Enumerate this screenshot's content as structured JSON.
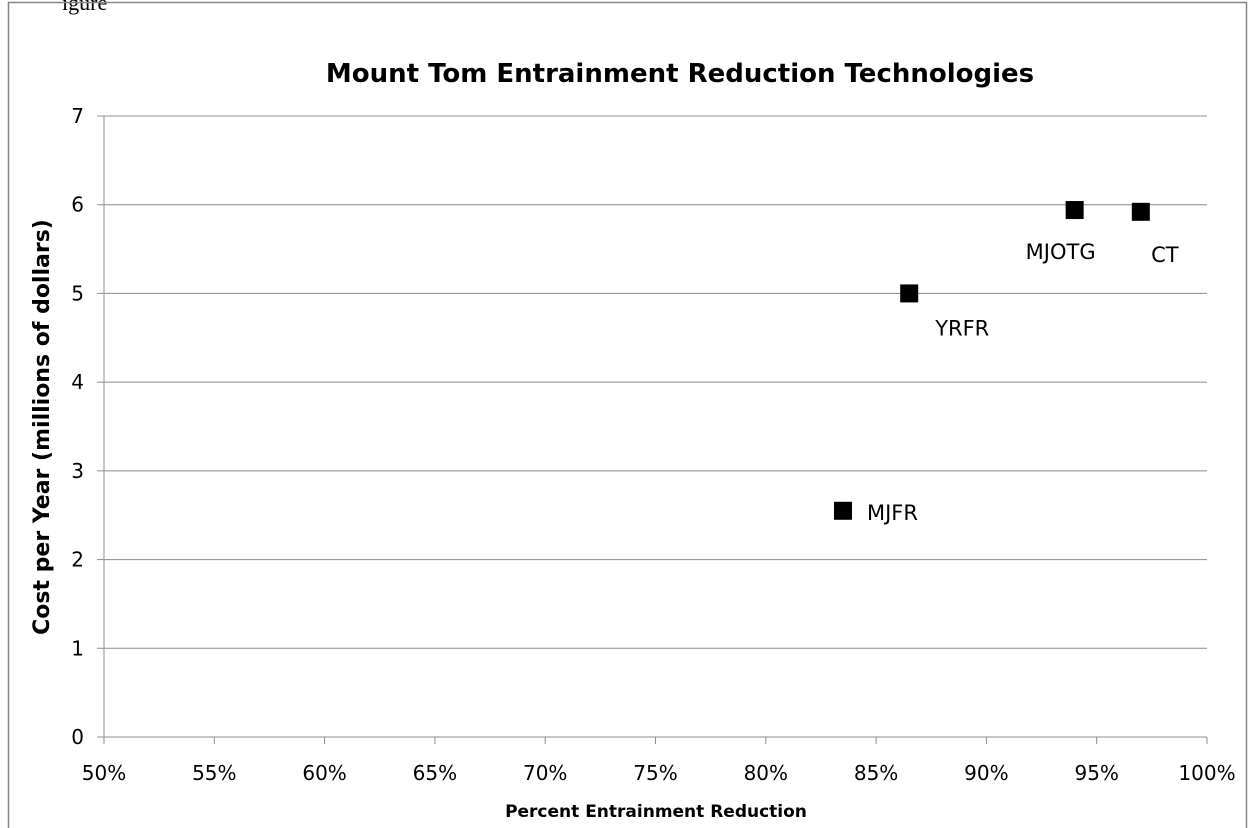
{
  "caption_fragment": "igure",
  "chart_data": {
    "type": "scatter",
    "title": "Mount Tom Entrainment Reduction Technologies",
    "xlabel": "Percent Entrainment Reduction",
    "ylabel": "Cost per Year (millions of dollars)",
    "xlim": [
      0.5,
      1.0
    ],
    "ylim": [
      0,
      7
    ],
    "x_ticks": [
      "50%",
      "55%",
      "60%",
      "65%",
      "70%",
      "75%",
      "80%",
      "85%",
      "90%",
      "95%",
      "100%"
    ],
    "y_ticks": [
      "0",
      "1",
      "2",
      "3",
      "4",
      "5",
      "6",
      "7"
    ],
    "grid": "horizontal",
    "legend": "none",
    "marker": "square",
    "marker_color": "#000000",
    "series": [
      {
        "points": [
          {
            "label": "MJFR",
            "x": 0.835,
            "y": 2.55
          },
          {
            "label": "YRFR",
            "x": 0.865,
            "y": 5.0
          },
          {
            "label": "MJOTG",
            "x": 0.94,
            "y": 5.94
          },
          {
            "label": "CT",
            "x": 0.97,
            "y": 5.92
          }
        ]
      }
    ]
  }
}
